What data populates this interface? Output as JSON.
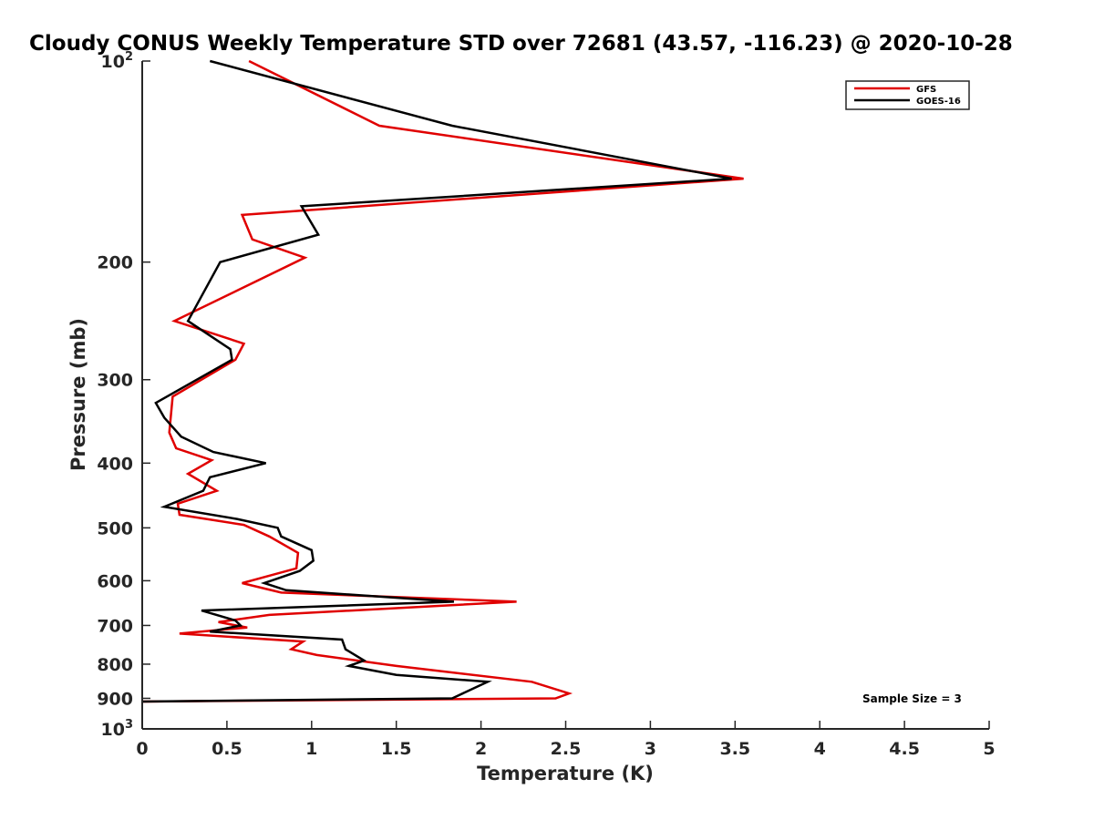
{
  "chart_data": {
    "type": "line",
    "title": "Cloudy CONUS Weekly Temperature STD over 72681 (43.57, -116.23) @ 2020-10-28",
    "xlabel": "Temperature (K)",
    "ylabel": "Pressure (mb)",
    "xlim": [
      0,
      5
    ],
    "ylim": [
      100,
      1000
    ],
    "y_scale": "log",
    "y_direction": "reversed",
    "x_ticks": [
      "0",
      "0.5",
      "1",
      "1.5",
      "2",
      "2.5",
      "3",
      "3.5",
      "4",
      "4.5",
      "5"
    ],
    "x_tick_values": [
      0,
      0.5,
      1,
      1.5,
      2,
      2.5,
      3,
      3.5,
      4,
      4.5,
      5
    ],
    "y_ticks": [
      {
        "value": 100,
        "base": "10",
        "exp": "2"
      },
      {
        "value": 200,
        "label": "200"
      },
      {
        "value": 300,
        "label": "300"
      },
      {
        "value": 400,
        "label": "400"
      },
      {
        "value": 500,
        "label": "500"
      },
      {
        "value": 600,
        "label": "600"
      },
      {
        "value": 700,
        "label": "700"
      },
      {
        "value": 800,
        "label": "800"
      },
      {
        "value": 900,
        "label": "900"
      },
      {
        "value": 1000,
        "base": "10",
        "exp": "3"
      }
    ],
    "legend_position": "top-right",
    "grid": false,
    "series": [
      {
        "name": "GFS",
        "color": "#e00000",
        "points": [
          [
            0.63,
            100
          ],
          [
            1.4,
            125
          ],
          [
            3.55,
            150
          ],
          [
            0.59,
            170
          ],
          [
            0.65,
            185
          ],
          [
            0.96,
            197
          ],
          [
            0.57,
            220
          ],
          [
            0.19,
            245
          ],
          [
            0.6,
            265
          ],
          [
            0.55,
            280
          ],
          [
            0.18,
            318
          ],
          [
            0.16,
            360
          ],
          [
            0.2,
            380
          ],
          [
            0.41,
            396
          ],
          [
            0.27,
            415
          ],
          [
            0.44,
            440
          ],
          [
            0.21,
            460
          ],
          [
            0.22,
            478
          ],
          [
            0.6,
            495
          ],
          [
            0.75,
            515
          ],
          [
            0.92,
            545
          ],
          [
            0.91,
            575
          ],
          [
            0.59,
            605
          ],
          [
            0.82,
            625
          ],
          [
            2.21,
            645
          ],
          [
            0.75,
            675
          ],
          [
            0.45,
            692
          ],
          [
            0.62,
            705
          ],
          [
            0.22,
            720
          ],
          [
            0.95,
            740
          ],
          [
            0.88,
            760
          ],
          [
            1.03,
            775
          ],
          [
            1.5,
            805
          ],
          [
            2.3,
            850
          ],
          [
            2.52,
            885
          ],
          [
            2.44,
            900
          ],
          [
            0,
            910
          ]
        ]
      },
      {
        "name": "GOES-16",
        "color": "#000000",
        "points": [
          [
            0.4,
            100
          ],
          [
            1.83,
            125
          ],
          [
            3.48,
            150
          ],
          [
            0.94,
            165
          ],
          [
            1.04,
            182
          ],
          [
            0.46,
            200
          ],
          [
            0.27,
            245
          ],
          [
            0.52,
            270
          ],
          [
            0.53,
            280
          ],
          [
            0.08,
            325
          ],
          [
            0.13,
            342
          ],
          [
            0.23,
            365
          ],
          [
            0.42,
            385
          ],
          [
            0.73,
            400
          ],
          [
            0.4,
            420
          ],
          [
            0.36,
            440
          ],
          [
            0.13,
            465
          ],
          [
            0.56,
            485
          ],
          [
            0.8,
            500
          ],
          [
            0.82,
            515
          ],
          [
            1.0,
            540
          ],
          [
            1.01,
            560
          ],
          [
            0.93,
            580
          ],
          [
            0.72,
            605
          ],
          [
            0.85,
            620
          ],
          [
            1.84,
            645
          ],
          [
            0.35,
            665
          ],
          [
            0.55,
            688
          ],
          [
            0.58,
            700
          ],
          [
            0.4,
            715
          ],
          [
            1.18,
            735
          ],
          [
            1.2,
            760
          ],
          [
            1.31,
            790
          ],
          [
            1.22,
            805
          ],
          [
            1.5,
            830
          ],
          [
            2.04,
            850
          ],
          [
            1.83,
            900
          ],
          [
            0,
            910
          ]
        ]
      }
    ],
    "annotation": "Sample Size = 3"
  }
}
